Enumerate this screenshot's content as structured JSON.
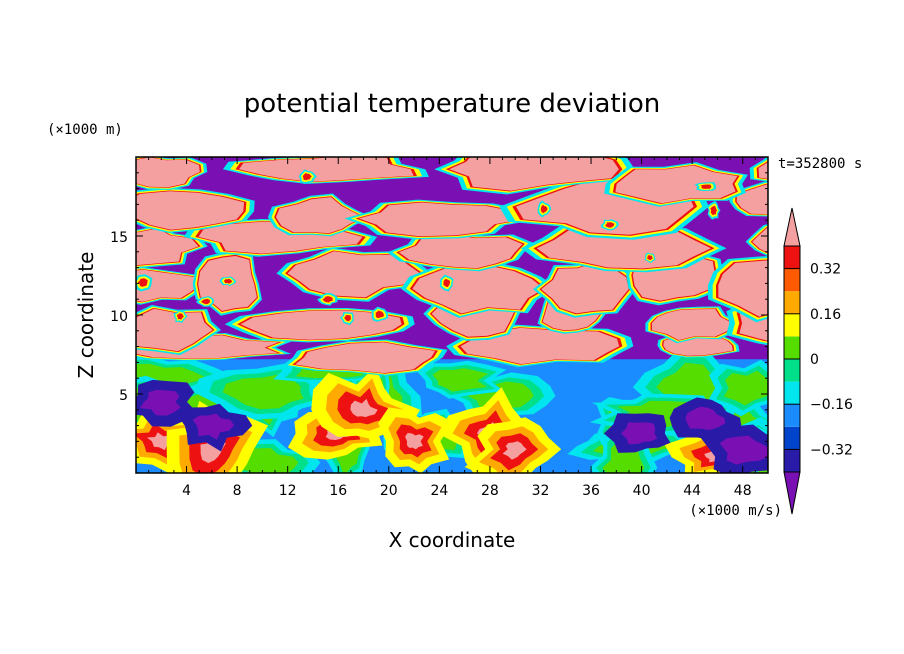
{
  "chart_data": {
    "type": "heatmap",
    "title": "potential temperature deviation",
    "xlabel": "X coordinate",
    "ylabel": "Z coordinate",
    "x_unit": "(×1000 m/s)",
    "y_unit": "(×1000 m)",
    "time_label": "t=352800 s",
    "xlim": [
      0,
      50
    ],
    "ylim": [
      0,
      20
    ],
    "x_ticks": [
      4,
      8,
      12,
      16,
      20,
      24,
      28,
      32,
      36,
      40,
      44,
      48
    ],
    "x_tick_labels": [
      "4",
      "8",
      "12",
      "16",
      "20",
      "24",
      "28",
      "32",
      "36",
      "40",
      "44",
      "48"
    ],
    "y_ticks": [
      5,
      10,
      15
    ],
    "y_tick_labels": [
      "5",
      "10",
      "15"
    ],
    "colorbar": {
      "levels": [
        -0.4,
        -0.32,
        -0.24,
        -0.16,
        -0.08,
        0,
        0.08,
        0.16,
        0.24,
        0.32,
        0.4
      ],
      "colors": [
        "#7a10b4",
        "#2a1aa8",
        "#0044cc",
        "#1a8cff",
        "#00e5ee",
        "#00e08a",
        "#55dd00",
        "#ffff00",
        "#ffaa00",
        "#ff5a00",
        "#ee1111",
        "#f4a0a0"
      ],
      "tick_values": [
        0.32,
        0.16,
        0,
        -0.16,
        -0.32
      ],
      "tick_labels": [
        "0.32",
        "0.16",
        "0",
        "−0.16",
        "−0.32"
      ],
      "extend": "both"
    },
    "field_description": {
      "upper_layer_z_range": [
        7,
        20
      ],
      "lower_layer_z_range": [
        0,
        7
      ]
    }
  }
}
